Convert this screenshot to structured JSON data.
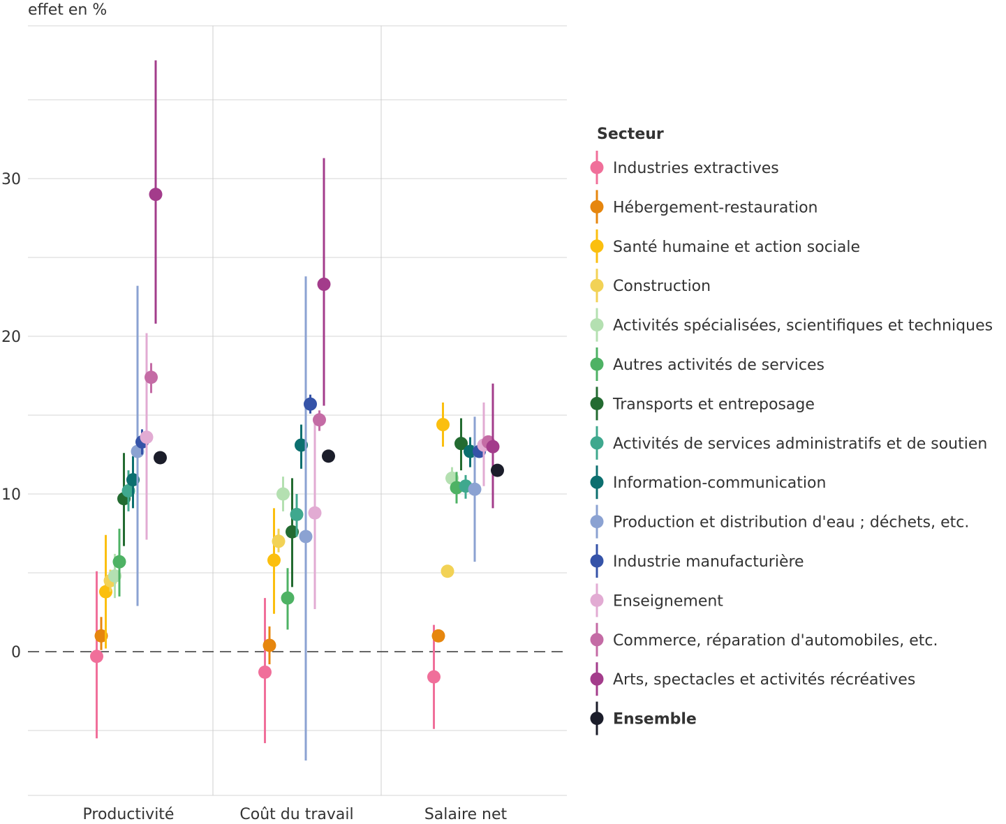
{
  "chart_data": {
    "type": "scatter",
    "ylabel": "effet en %",
    "ylim": [
      -9,
      40
    ],
    "yticks": [
      0,
      10,
      20,
      30
    ],
    "categories": [
      "Productivité",
      "Coût du travail",
      "Salaire net"
    ],
    "reference_line": 0,
    "legend": {
      "title": "Secteur",
      "position": "right"
    },
    "series": [
      {
        "name": "Industries extractives",
        "color": "#f06f9a",
        "bold": false,
        "points": [
          {
            "category": "Productivité",
            "value": -0.3,
            "low": -5.5,
            "high": 5.1
          },
          {
            "category": "Coût du travail",
            "value": -1.3,
            "low": -5.8,
            "high": 3.4
          },
          {
            "category": "Salaire net",
            "value": -1.6,
            "low": -4.9,
            "high": 1.7
          }
        ]
      },
      {
        "name": "Hébergement-restauration",
        "color": "#e6860e",
        "bold": false,
        "points": [
          {
            "category": "Productivité",
            "value": 1.0,
            "low": 0.1,
            "high": 2.2
          },
          {
            "category": "Coût du travail",
            "value": 0.4,
            "low": -0.8,
            "high": 1.6
          },
          {
            "category": "Salaire net",
            "value": 1.0,
            "low": 0.6,
            "high": 1.4
          }
        ]
      },
      {
        "name": "Santé humaine et action sociale",
        "color": "#fbbf0f",
        "bold": false,
        "points": [
          {
            "category": "Productivité",
            "value": 3.8,
            "low": 0.2,
            "high": 7.4
          },
          {
            "category": "Coût du travail",
            "value": 5.8,
            "low": 2.4,
            "high": 9.1
          },
          {
            "category": "Salaire net",
            "value": 14.4,
            "low": 13.0,
            "high": 15.8
          }
        ]
      },
      {
        "name": "Construction",
        "color": "#f2d256",
        "bold": false,
        "points": [
          {
            "category": "Productivité",
            "value": 4.5,
            "low": 3.8,
            "high": 5.2
          },
          {
            "category": "Coût du travail",
            "value": 7.0,
            "low": 6.3,
            "high": 7.8
          },
          {
            "category": "Salaire net",
            "value": 5.1,
            "low": 4.8,
            "high": 5.4
          }
        ]
      },
      {
        "name": "Activités spécialisées, scientifiques et techniques",
        "color": "#b4e0b1",
        "bold": false,
        "points": [
          {
            "category": "Productivité",
            "value": 4.8,
            "low": 3.4,
            "high": 6.2
          },
          {
            "category": "Coût du travail",
            "value": 10.0,
            "low": 8.9,
            "high": 11.1
          },
          {
            "category": "Salaire net",
            "value": 11.0,
            "low": 10.2,
            "high": 11.7
          }
        ]
      },
      {
        "name": "Autres activités de services",
        "color": "#4eb264",
        "bold": false,
        "points": [
          {
            "category": "Productivité",
            "value": 5.7,
            "low": 3.5,
            "high": 7.8
          },
          {
            "category": "Coût du travail",
            "value": 3.4,
            "low": 1.4,
            "high": 5.3
          },
          {
            "category": "Salaire net",
            "value": 10.4,
            "low": 9.4,
            "high": 11.4
          }
        ]
      },
      {
        "name": "Transports et entreposage",
        "color": "#236b31",
        "bold": false,
        "points": [
          {
            "category": "Productivité",
            "value": 9.7,
            "low": 6.7,
            "high": 12.6
          },
          {
            "category": "Coût du travail",
            "value": 7.6,
            "low": 4.1,
            "high": 11.0
          },
          {
            "category": "Salaire net",
            "value": 13.2,
            "low": 11.5,
            "high": 14.8
          }
        ]
      },
      {
        "name": "Activités de services administratifs et de soutien",
        "color": "#3fa88e",
        "bold": false,
        "points": [
          {
            "category": "Productivité",
            "value": 10.2,
            "low": 8.9,
            "high": 11.5
          },
          {
            "category": "Coût du travail",
            "value": 8.7,
            "low": 7.3,
            "high": 10.0
          },
          {
            "category": "Salaire net",
            "value": 10.5,
            "low": 9.7,
            "high": 11.2
          }
        ]
      },
      {
        "name": "Information-communication",
        "color": "#0c6f6f",
        "bold": false,
        "points": [
          {
            "category": "Productivité",
            "value": 10.9,
            "low": 9.1,
            "high": 12.4
          },
          {
            "category": "Coût du travail",
            "value": 13.1,
            "low": 11.6,
            "high": 14.4
          },
          {
            "category": "Salaire net",
            "value": 12.7,
            "low": 11.7,
            "high": 13.6
          }
        ]
      },
      {
        "name": "Production et distribution d'eau ; déchets, etc.",
        "color": "#8ba2d2",
        "bold": false,
        "points": [
          {
            "category": "Productivité",
            "value": 12.7,
            "low": 2.9,
            "high": 23.2
          },
          {
            "category": "Coût du travail",
            "value": 7.3,
            "low": -6.9,
            "high": 23.8
          },
          {
            "category": "Salaire net",
            "value": 10.3,
            "low": 5.7,
            "high": 14.9
          }
        ]
      },
      {
        "name": "Industrie manufacturière",
        "color": "#3553a8",
        "bold": false,
        "points": [
          {
            "category": "Productivité",
            "value": 13.3,
            "low": 12.5,
            "high": 14.1
          },
          {
            "category": "Coût du travail",
            "value": 15.7,
            "low": 15.1,
            "high": 16.3
          },
          {
            "category": "Salaire net",
            "value": 12.7,
            "low": 12.3,
            "high": 13.1
          }
        ]
      },
      {
        "name": "Enseignement",
        "color": "#e2abd3",
        "bold": false,
        "points": [
          {
            "category": "Productivité",
            "value": 13.6,
            "low": 7.1,
            "high": 20.2
          },
          {
            "category": "Coût du travail",
            "value": 8.8,
            "low": 2.7,
            "high": 14.8
          },
          {
            "category": "Salaire net",
            "value": 13.1,
            "low": 10.5,
            "high": 15.8
          }
        ]
      },
      {
        "name": "Commerce, réparation d'automobiles, etc.",
        "color": "#c46ba5",
        "bold": false,
        "points": [
          {
            "category": "Productivité",
            "value": 17.4,
            "low": 16.4,
            "high": 18.3
          },
          {
            "category": "Coût du travail",
            "value": 14.7,
            "low": 14.0,
            "high": 15.3
          },
          {
            "category": "Salaire net",
            "value": 13.3,
            "low": 12.8,
            "high": 13.7
          }
        ]
      },
      {
        "name": "Arts, spectacles et activités récréatives",
        "color": "#a33c8b",
        "bold": false,
        "points": [
          {
            "category": "Productivité",
            "value": 29.0,
            "low": 20.8,
            "high": 37.5
          },
          {
            "category": "Coût du travail",
            "value": 23.3,
            "low": 15.6,
            "high": 31.3
          },
          {
            "category": "Salaire net",
            "value": 13.0,
            "low": 9.1,
            "high": 17.0
          }
        ]
      },
      {
        "name": "Ensemble",
        "color": "#1b1d2a",
        "bold": true,
        "points": [
          {
            "category": "Productivité",
            "value": 12.3,
            "low": 12.0,
            "high": 12.6
          },
          {
            "category": "Coût du travail",
            "value": 12.4,
            "low": 12.1,
            "high": 12.7
          },
          {
            "category": "Salaire net",
            "value": 11.5,
            "low": 11.2,
            "high": 11.8
          }
        ]
      }
    ]
  }
}
